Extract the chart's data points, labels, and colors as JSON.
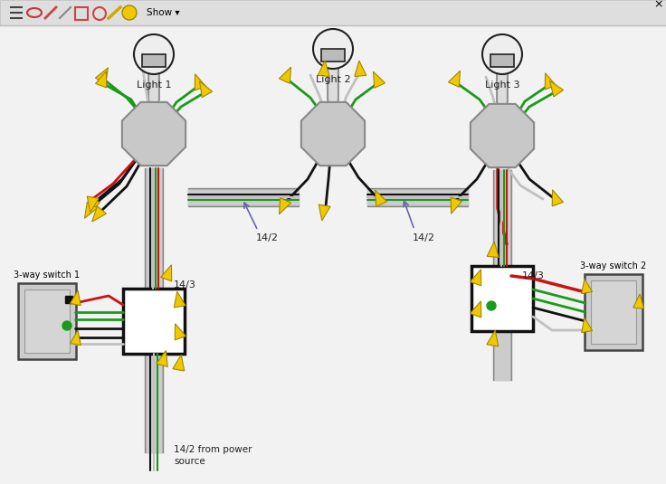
{
  "bg": "#f2f2f2",
  "toolbar_bg": "#dcdcdc",
  "wire_black": "#111111",
  "wire_green": "#1a9a1a",
  "wire_white": "#c0c0c0",
  "wire_red": "#cc1111",
  "wire_gray": "#909090",
  "connector_yellow": "#f0c800",
  "connector_outline": "#a08800",
  "oct_fill": "#c8c8c8",
  "oct_edge": "#888888",
  "conduit_outer": "#aaaaaa",
  "conduit_inner": "#cccccc",
  "switch_fill": "#cccccc",
  "switch_edge": "#444444",
  "jbox_fill": "#ffffff",
  "jbox_edge": "#111111",
  "bulb_fill": "#eeeeee",
  "bulb_edge": "#222222",
  "base_fill": "#bbbbbb",
  "text_color": "#222222",
  "arrow_color": "#6666aa",
  "labels": {
    "light1": "Light 1",
    "light2": "Light 2",
    "light3": "Light 3",
    "sw1": "3-way switch 1",
    "sw2": "3-way switch 2",
    "c142_left": "14/2",
    "c142_right": "14/2",
    "c143_left": "14/3",
    "c143_right": "14/3",
    "power": "14/2 from power\nsource"
  }
}
